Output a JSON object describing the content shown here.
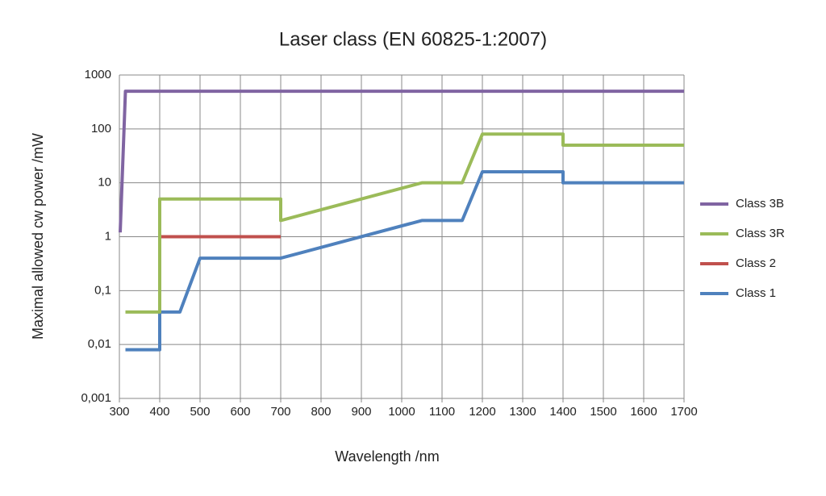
{
  "chart_data": {
    "type": "line",
    "title": "Laser class (EN 60825-1:2007)",
    "xlabel": "Wavelength  /nm",
    "ylabel": "Maximal allowed cw power  /mW",
    "xlim": [
      300,
      1700
    ],
    "xticks": [
      300,
      400,
      500,
      600,
      700,
      800,
      900,
      1000,
      1100,
      1200,
      1300,
      1400,
      1500,
      1600,
      1700
    ],
    "ylim": [
      0.001,
      1000
    ],
    "yscale": "log",
    "yticks": [
      {
        "value": 0.001,
        "label": "0,001"
      },
      {
        "value": 0.01,
        "label": "0,01"
      },
      {
        "value": 0.1,
        "label": "0,1"
      },
      1,
      10,
      100,
      1000
    ],
    "grid": true,
    "legend": "right",
    "series": [
      {
        "name": "Class 3B",
        "color": "#8064a2",
        "x": [
          302,
          315,
          1700
        ],
        "values": [
          1.2,
          500,
          500
        ]
      },
      {
        "name": "Class 3R",
        "color": "#9bbb59",
        "x": [
          315,
          400,
          400,
          700,
          700,
          1050,
          1150,
          1200,
          1400,
          1400,
          1700
        ],
        "values": [
          0.04,
          0.04,
          5,
          5,
          2,
          10,
          10,
          80,
          80,
          50,
          50
        ]
      },
      {
        "name": "Class 2",
        "color": "#c0504d",
        "x": [
          400,
          700
        ],
        "values": [
          1,
          1
        ]
      },
      {
        "name": "Class 1",
        "color": "#4f81bd",
        "x": [
          315,
          400,
          400,
          450,
          500,
          700,
          1050,
          1150,
          1200,
          1400,
          1400,
          1700
        ],
        "values": [
          0.008,
          0.008,
          0.04,
          0.04,
          0.4,
          0.4,
          2,
          2,
          16,
          16,
          10,
          10
        ]
      }
    ]
  }
}
